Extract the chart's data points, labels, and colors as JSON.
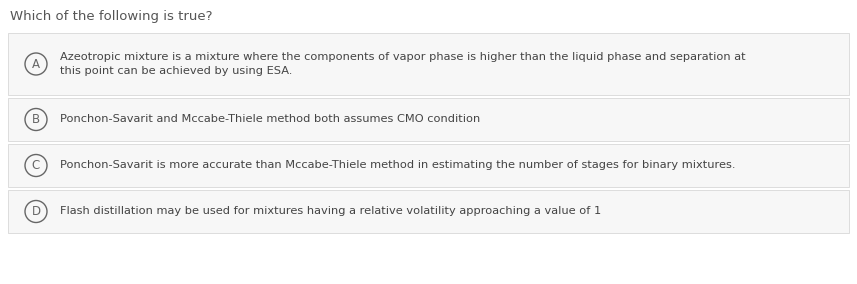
{
  "title": "Which of the following is true?",
  "title_fontsize": 9.5,
  "title_color": "#555555",
  "background_color": "#ffffff",
  "option_bg_color": "#f7f7f7",
  "option_border_color": "#d8d8d8",
  "circle_edge_color": "#666666",
  "circle_face_color": "#f7f7f7",
  "text_color": "#444444",
  "label_color": "#666666",
  "options": [
    {
      "label": "A",
      "text": "Azeotropic mixture is a mixture where the components of vapor phase is higher than the liquid phase and separation at\nthis point can be achieved by using ESA.",
      "tall": true
    },
    {
      "label": "B",
      "text": "Ponchon-Savarit and Mccabe-Thiele method both assumes CMO condition",
      "tall": false
    },
    {
      "label": "C",
      "text": "Ponchon-Savarit is more accurate than Mccabe-Thiele method in estimating the number of stages for binary mixtures.",
      "tall": false
    },
    {
      "label": "D",
      "text": "Flash distillation may be used for mixtures having a relative volatility approaching a value of 1",
      "tall": false
    }
  ],
  "figwidth": 8.57,
  "figheight": 2.84,
  "dpi": 100,
  "option_text_fontsize": 8.2,
  "label_fontsize": 8.5
}
